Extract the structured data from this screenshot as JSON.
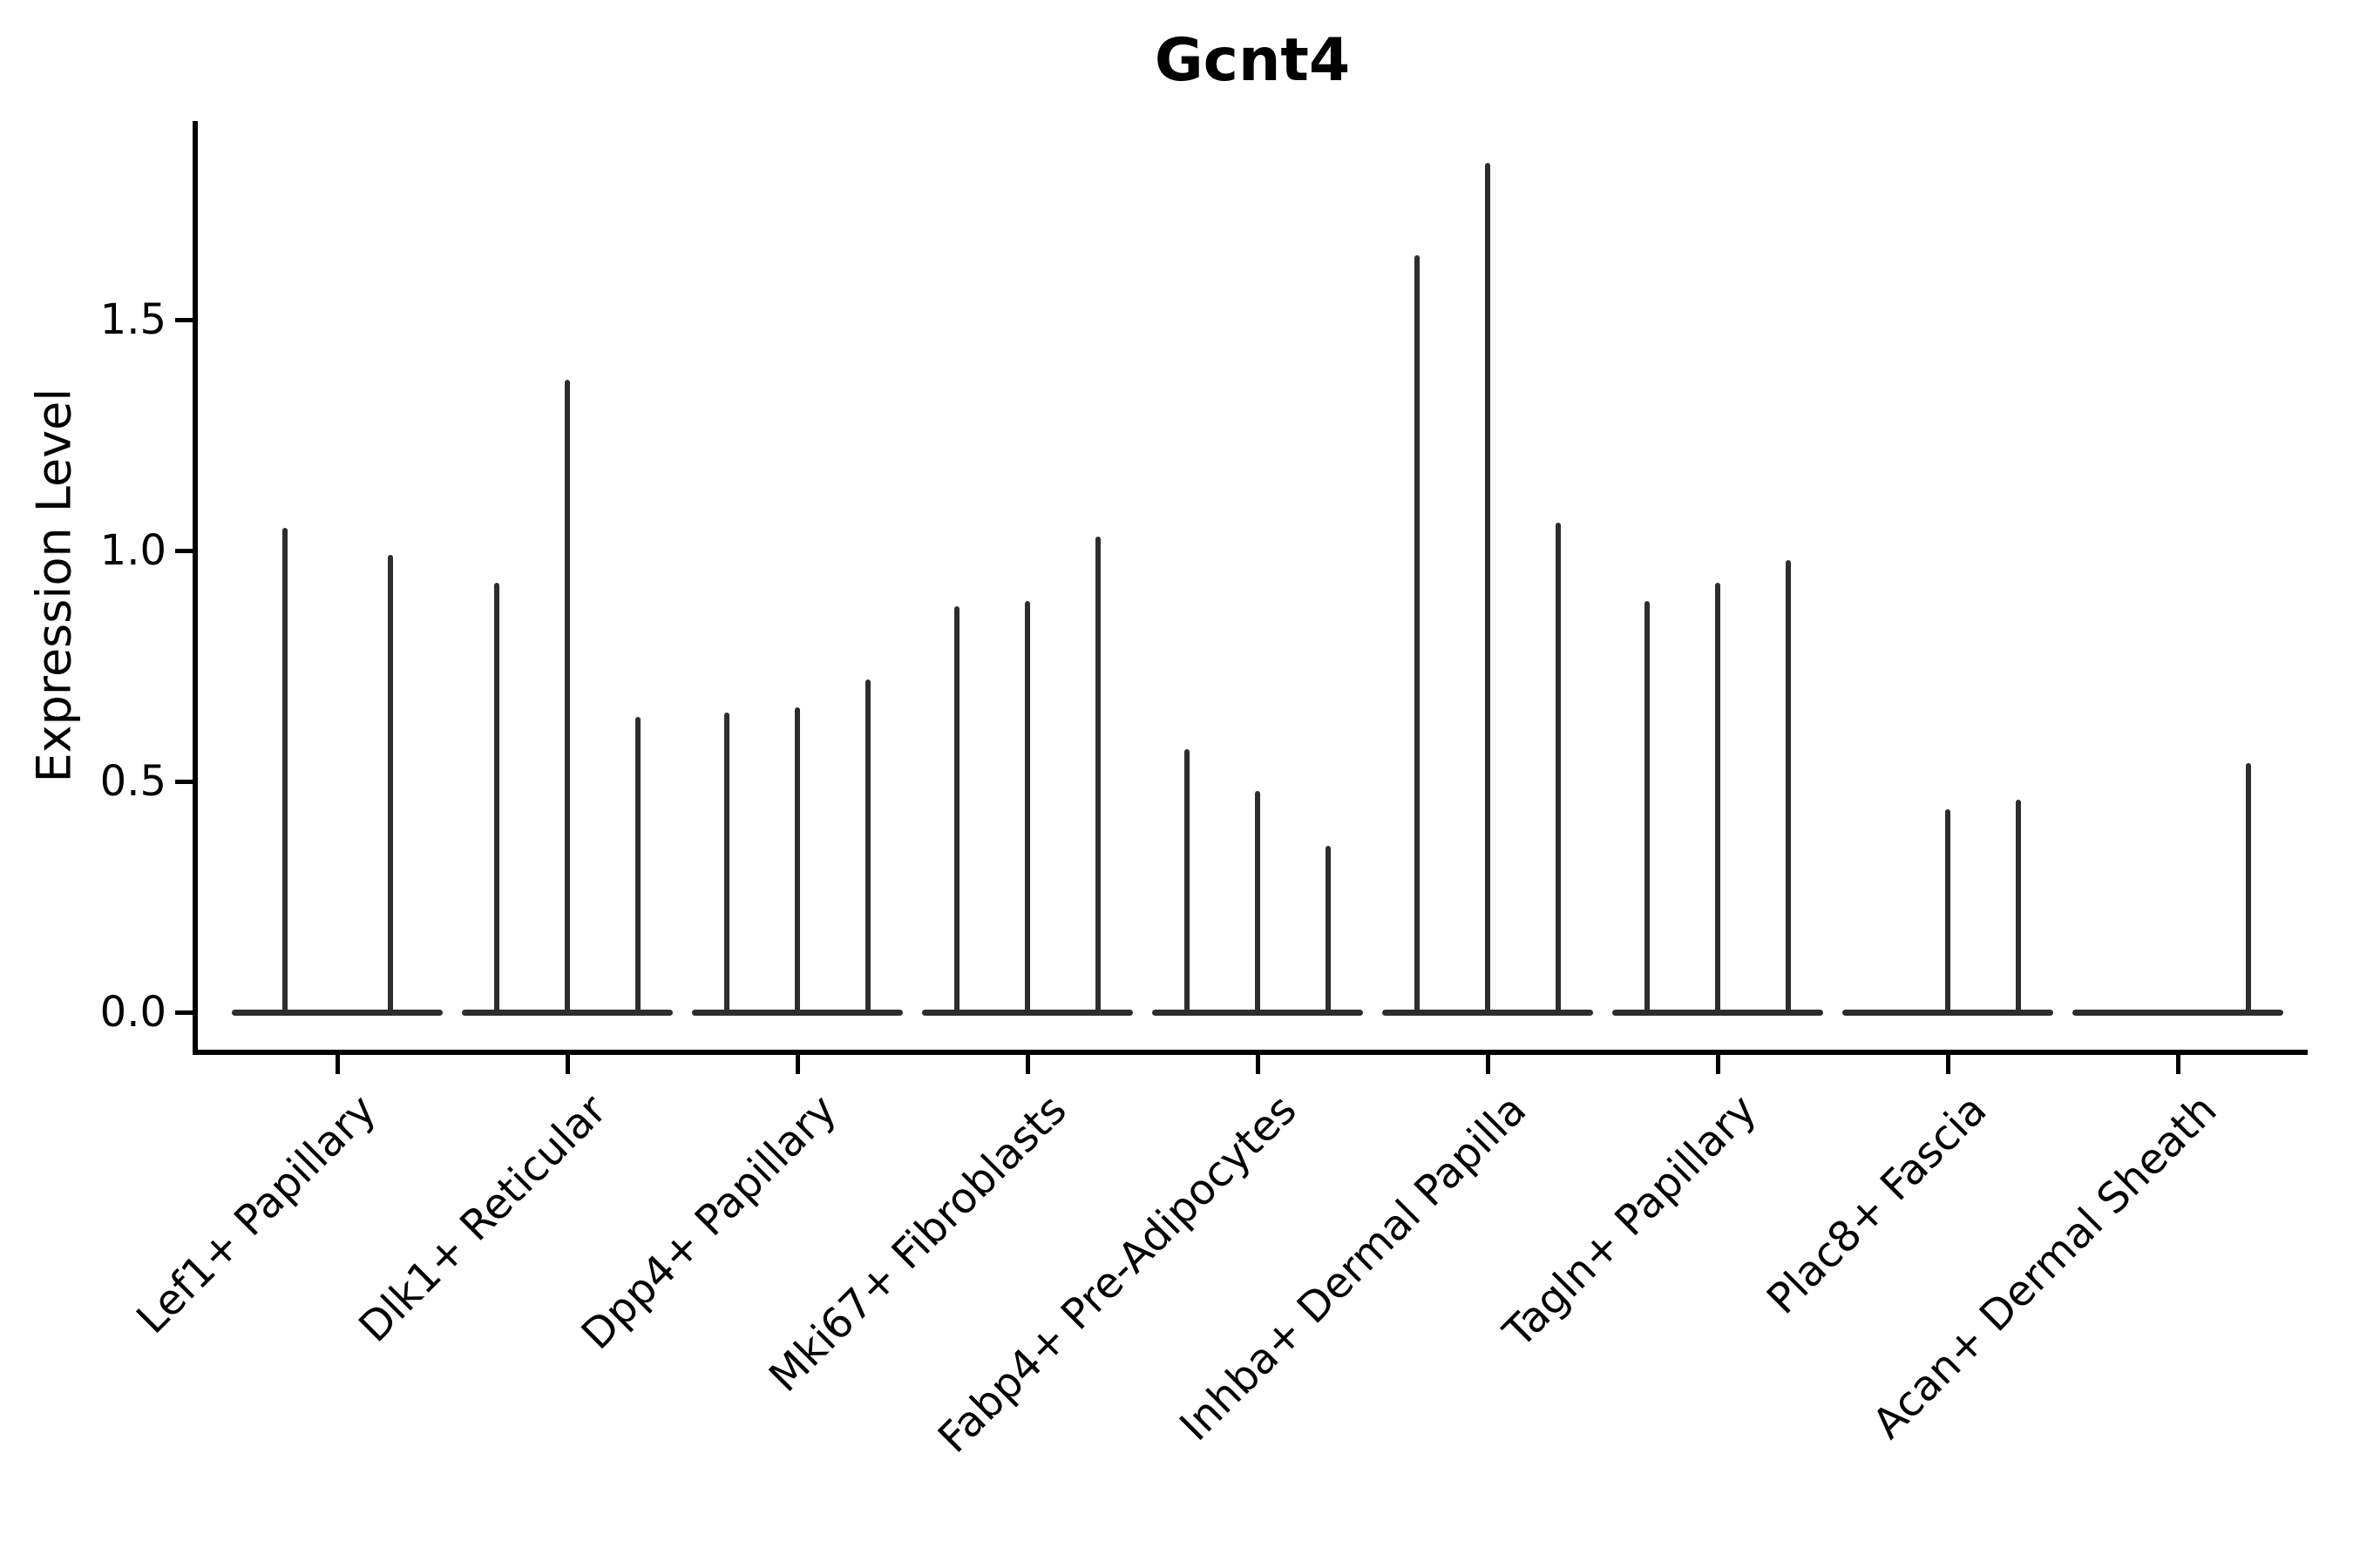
{
  "chart_data": {
    "type": "violin",
    "title": "Gcnt4",
    "xlabel": "",
    "ylabel": "Expression Level",
    "yticks": [
      "0.0",
      "0.5",
      "1.0",
      "1.5"
    ],
    "ytick_values": [
      0.0,
      0.5,
      1.0,
      1.5
    ],
    "ylim": [
      -0.09,
      1.93
    ],
    "grid": false,
    "legend": "none",
    "line_color": "#2d2d2d",
    "axis_color": "#000000",
    "categories": [
      "Lef1+ Papillary",
      "Dlk1+ Reticular",
      "Dpp4+ Papillary",
      "Mki67+ Fibroblasts",
      "Fabp4+ Pre-Adipocytes",
      "Inhba+ Dermal Papilla",
      "Tagln+ Papillary",
      "Plac8+ Fascia",
      "Acan+ Dermal Sheath"
    ],
    "groups": [
      {
        "category": "Lef1+ Papillary",
        "violin_max_values": [
          1.05,
          0.99
        ]
      },
      {
        "category": "Dlk1+ Reticular",
        "violin_max_values": [
          0.93,
          1.37,
          0.64
        ]
      },
      {
        "category": "Dpp4+ Papillary",
        "violin_max_values": [
          0.65,
          0.66,
          0.72
        ]
      },
      {
        "category": "Mki67+ Fibroblasts",
        "violin_max_values": [
          0.88,
          0.89,
          1.03
        ]
      },
      {
        "category": "Fabp4+ Pre-Adipocytes",
        "violin_max_values": [
          0.57,
          0.48,
          0.36
        ]
      },
      {
        "category": "Inhba+ Dermal Papilla",
        "violin_max_values": [
          1.64,
          1.84,
          1.06
        ]
      },
      {
        "category": "Tagln+ Papillary",
        "violin_max_values": [
          0.89,
          0.93,
          0.98
        ]
      },
      {
        "category": "Plac8+ Fascia",
        "violin_max_values": [
          0.0,
          0.44,
          0.46
        ]
      },
      {
        "category": "Acan+ Dermal Sheath",
        "violin_max_values": [
          0.0,
          0.0,
          0.54
        ]
      }
    ]
  }
}
